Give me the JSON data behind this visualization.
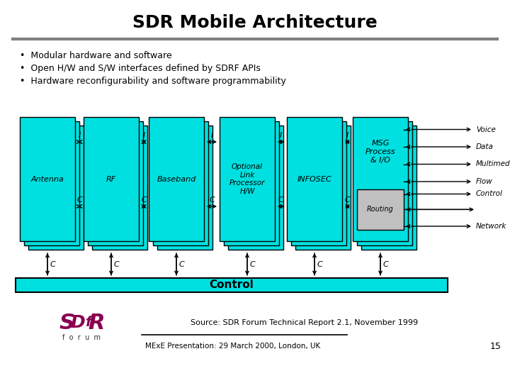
{
  "title": "SDR Mobile Architecture",
  "bullets": [
    "Modular hardware and software",
    "Open H/W and S/W interfaces defined by SDRF APIs",
    "Hardware reconfigurability and software programmability"
  ],
  "modules": [
    "Antenna",
    "RF",
    "Baseband",
    "Optional\nLink\nProcessor\nH/W",
    "INFOSEC",
    "MSG\nProcess\n& I/O"
  ],
  "routing_label": "Routing",
  "control_label": "Control",
  "source_text": "Source: SDR Forum Technical Report 2.1, November 1999",
  "footer_text": "MExE Presentation: 29 March 2000, London, UK",
  "page_num": "15",
  "bg_color": "#ffffff",
  "box_fill": "#00e0e0",
  "box_edge": "#000000",
  "routing_fill": "#c0c0c0",
  "control_fill": "#00e0e0",
  "title_color": "#000000",
  "bullet_color": "#000000",
  "gray_line": "#808080",
  "right_items": [
    {
      "label": "Voice",
      "arrow": "right"
    },
    {
      "label": "Data",
      "arrow": "right"
    },
    {
      "label": "Multimedia",
      "arrow": "right"
    },
    {
      "label": "Flow",
      "arrow": "right"
    },
    {
      "label": "Control",
      "arrow": "right"
    },
    {
      "label": "Network",
      "arrow": "right"
    }
  ]
}
